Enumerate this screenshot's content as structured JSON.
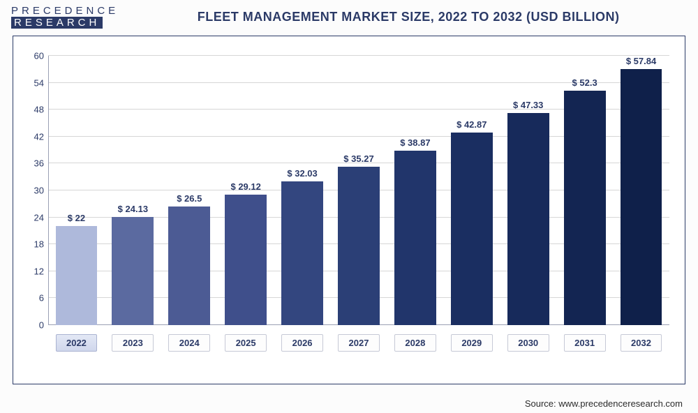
{
  "logo": {
    "line1": "PRECEDENCE",
    "line2": "RESEARCH"
  },
  "title": "FLEET MANAGEMENT MARKET SIZE, 2022 TO 2032 (USD BILLION)",
  "source": "Source: www.precedenceresearch.com",
  "chart": {
    "type": "bar",
    "ylim": [
      0,
      60
    ],
    "yticks": [
      0,
      6,
      12,
      18,
      24,
      30,
      36,
      42,
      48,
      54,
      60
    ],
    "grid_color": "#d6d6d6",
    "background_color": "#ffffff",
    "axis_color": "#9aa0b4",
    "label_fontsize": 13,
    "title_fontsize": 18,
    "bar_width_pct": 74,
    "highlight_index": 0,
    "categories": [
      "2022",
      "2023",
      "2024",
      "2025",
      "2026",
      "2027",
      "2028",
      "2029",
      "2030",
      "2031",
      "2032"
    ],
    "values": [
      22,
      24.13,
      26.5,
      29.12,
      32.03,
      35.27,
      38.87,
      42.87,
      47.33,
      52.3,
      57.84
    ],
    "value_labels": [
      "$ 22",
      "$ 24.13",
      "$ 26.5",
      "$ 29.12",
      "$ 32.03",
      "$ 35.27",
      "$ 38.87",
      "$ 42.87",
      "$ 47.33",
      "$ 52.3",
      "$ 57.84"
    ],
    "bar_colors": [
      "#aeb9db",
      "#5b6aa0",
      "#4c5b94",
      "#3f4f8b",
      "#33467f",
      "#2b3f76",
      "#21356b",
      "#1a2e61",
      "#172a5b",
      "#132552",
      "#0f204a"
    ],
    "text_color": "#2b3a67"
  }
}
